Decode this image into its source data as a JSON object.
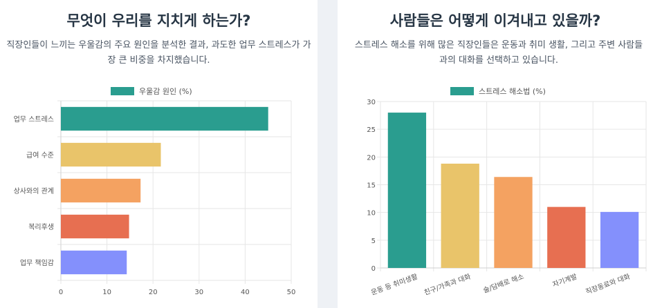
{
  "left": {
    "title": "무엇이 우리를 지치게 하는가?",
    "description": "직장인들이 느끼는 우울감의 주요 원인을 분석한 결과, 과도한 업무 스트레스가 가장 큰 비중을 차지했습니다."
  },
  "right": {
    "title": "사람들은 어떻게 이겨내고 있을까?",
    "description": "스트레스 해소를 위해 많은 직장인들은 운동과 취미 생활, 그리고 주변 사람들과의 대화를 선택하고 있습니다."
  },
  "chart_data": [
    {
      "type": "bar",
      "orientation": "horizontal",
      "categories": [
        "업무 스트레스",
        "급여 수준",
        "상사와의 관계",
        "복리후생",
        "업무 책임감"
      ],
      "series": [
        {
          "name": "우울감 원인 (%)",
          "values": [
            45,
            21.7,
            17.3,
            14.8,
            14.3
          ]
        }
      ],
      "colors": [
        "#2a9d8f",
        "#e9c46a",
        "#f4a261",
        "#e76f51",
        "#8490fc"
      ],
      "xlim": [
        0,
        50
      ],
      "xticks": [
        0,
        10,
        20,
        30,
        40,
        50
      ],
      "legend": "top",
      "grid": true
    },
    {
      "type": "bar",
      "orientation": "vertical",
      "categories": [
        "운동 등 취미생활",
        "친구/가족과 대화",
        "술/담배로 해소",
        "자기계발",
        "직장동료와 대화"
      ],
      "series": [
        {
          "name": "스트레스 해소법 (%)",
          "values": [
            28,
            18.8,
            16.4,
            11,
            10.1
          ]
        }
      ],
      "colors": [
        "#2a9d8f",
        "#e9c46a",
        "#f4a261",
        "#e76f51",
        "#8490fc"
      ],
      "ylim": [
        0,
        30
      ],
      "yticks": [
        0,
        5,
        10,
        15,
        20,
        25,
        30
      ],
      "legend": "top",
      "grid": true
    }
  ]
}
